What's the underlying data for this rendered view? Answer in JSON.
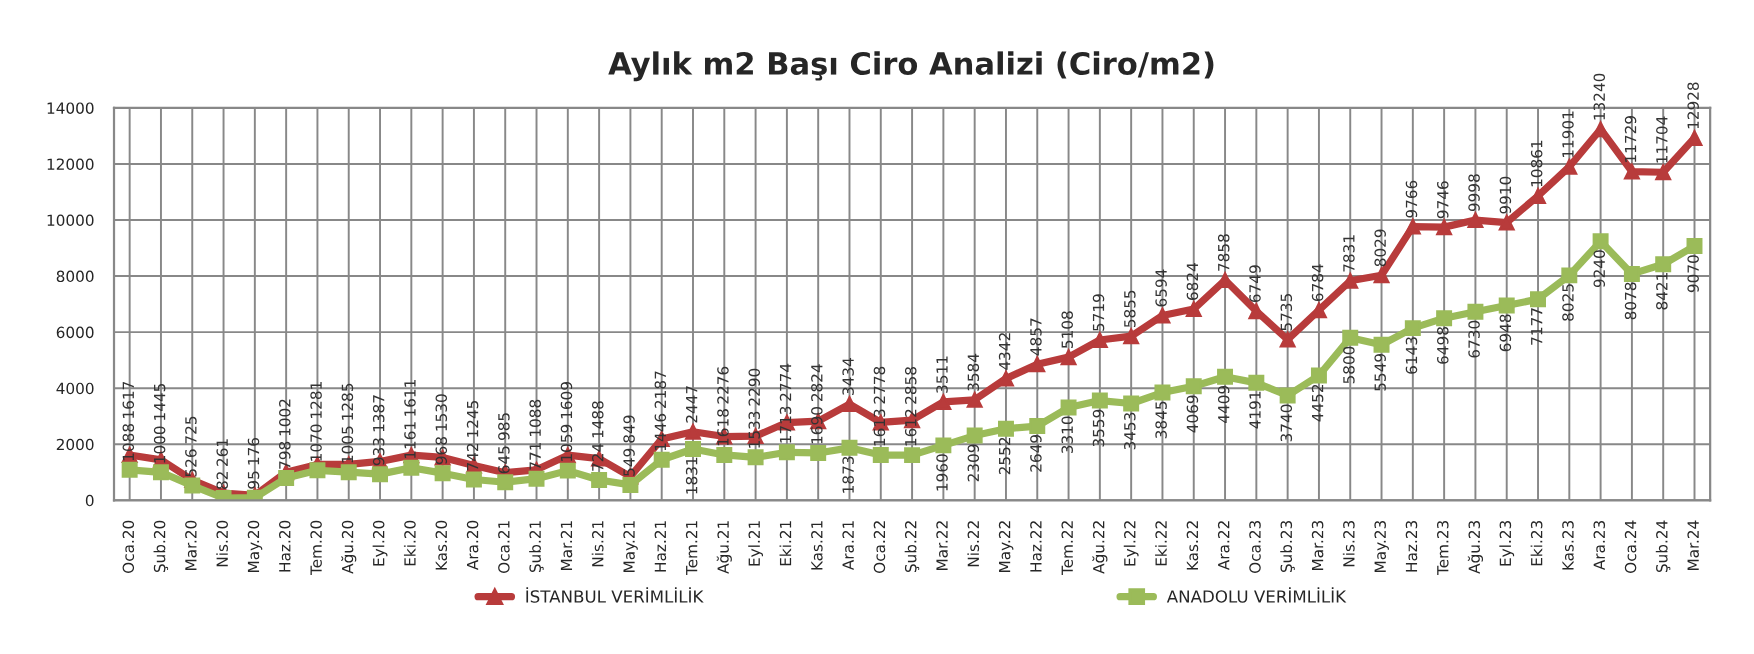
{
  "chart_data": {
    "type": "line",
    "title": "Aylık m2 Başı Ciro Analizi (Ciro/m2)",
    "categories": [
      "Oca.20",
      "Şub.20",
      "Mar.20",
      "Nis.20",
      "May.20",
      "Haz.20",
      "Tem.20",
      "Ağu.20",
      "Eyl.20",
      "Eki.20",
      "Kas.20",
      "Ara.20",
      "Oca.21",
      "Şub.21",
      "Mar.21",
      "Nis.21",
      "May.21",
      "Haz.21",
      "Tem.21",
      "Ağu.21",
      "Eyl.21",
      "Eki.21",
      "Kas.21",
      "Ara.21",
      "Oca.22",
      "Şub.22",
      "Mar.22",
      "Nis.22",
      "May.22",
      "Haz.22",
      "Tem.22",
      "Ağu.22",
      "Eyl.22",
      "Eki.22",
      "Kas.22",
      "Ara.22",
      "Oca.23",
      "Şub.23",
      "Mar.23",
      "Nis.23",
      "May.23",
      "Haz.23",
      "Tem.23",
      "Ağu.23",
      "Eyl.23",
      "Eki.23",
      "Kas.23",
      "Ara.23",
      "Oca.24",
      "Şub.24",
      "Mar.24"
    ],
    "series": [
      {
        "name": "İSTANBUL VERİMLİLİK",
        "color": "#b83b3b",
        "marker": "triangle",
        "values": [
          1617,
          1445,
          725,
          261,
          176,
          1002,
          1281,
          1285,
          1387,
          1611,
          1530,
          1245,
          985,
          1088,
          1609,
          1488,
          849,
          2187,
          2447,
          2276,
          2290,
          2774,
          2824,
          3434,
          2778,
          2858,
          3511,
          3584,
          4342,
          4857,
          5108,
          5719,
          5855,
          6594,
          6824,
          7858,
          6749,
          5735,
          6784,
          7831,
          8029,
          9766,
          9746,
          9998,
          9910,
          10861,
          11901,
          13240,
          11729,
          11704,
          12928
        ]
      },
      {
        "name": "ANADOLU VERİMLİLİK",
        "color": "#9bbb59",
        "marker": "square",
        "values": [
          1088,
          1000,
          526,
          82,
          95,
          798,
          1070,
          1005,
          933,
          1161,
          968,
          742,
          645,
          771,
          1059,
          724,
          549,
          1446,
          1831,
          1618,
          1533,
          1713,
          1690,
          1873,
          1613,
          1612,
          1960,
          2309,
          2552,
          2649,
          3310,
          3559,
          3453,
          3845,
          4069,
          4409,
          4191,
          3740,
          4452,
          5800,
          5549,
          6143,
          6498,
          6730,
          6948,
          7177,
          8025,
          9240,
          8078,
          8421,
          9070
        ]
      }
    ],
    "ylim": [
      0,
      14000
    ],
    "yticks": [
      0,
      2000,
      4000,
      6000,
      8000,
      10000,
      12000,
      14000
    ],
    "grid": true,
    "legend": "bottom",
    "data_labels": true
  }
}
